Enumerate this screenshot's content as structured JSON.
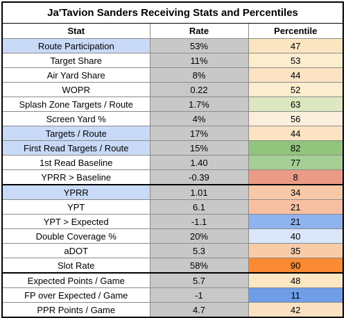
{
  "title": "Ja'Tavion Sanders Receiving Stats and Percentiles",
  "headers": {
    "stat": "Stat",
    "rate": "Rate",
    "percentile": "Percentile"
  },
  "rows": [
    {
      "stat": "Route Participation",
      "rate": "53%",
      "percentile": "47",
      "stat_bg": "#c9daf8",
      "pct_bg": "#fbe5c0"
    },
    {
      "stat": "Target Share",
      "rate": "11%",
      "percentile": "53",
      "stat_bg": "#ffffff",
      "pct_bg": "#faeecf"
    },
    {
      "stat": "Air Yard Share",
      "rate": "8%",
      "percentile": "44",
      "stat_bg": "#ffffff",
      "pct_bg": "#fbe3c3"
    },
    {
      "stat": "WOPR",
      "rate": "0.22",
      "percentile": "52",
      "stat_bg": "#ffffff",
      "pct_bg": "#faedd0"
    },
    {
      "stat": "Splash Zone Targets / Route",
      "rate": "1.7%",
      "percentile": "63",
      "stat_bg": "#ffffff",
      "pct_bg": "#dde8c0"
    },
    {
      "stat": "Screen Yard %",
      "rate": "4%",
      "percentile": "56",
      "stat_bg": "#ffffff",
      "pct_bg": "#fbeedd"
    },
    {
      "stat": "Targets / Route",
      "rate": "17%",
      "percentile": "44",
      "stat_bg": "#c9daf8",
      "pct_bg": "#fbe3c3"
    },
    {
      "stat": "First Read Targets / Route",
      "rate": "15%",
      "percentile": "82",
      "stat_bg": "#c9daf8",
      "pct_bg": "#93c47d"
    },
    {
      "stat": "1st Read Baseline",
      "rate": "1.40",
      "percentile": "77",
      "stat_bg": "#ffffff",
      "pct_bg": "#a6cf95"
    },
    {
      "stat": "YPRR > Baseline",
      "rate": "-0.39",
      "percentile": "8",
      "stat_bg": "#ffffff",
      "pct_bg": "#ea9a85"
    },
    {
      "stat": "YPRR",
      "rate": "1.01",
      "percentile": "34",
      "stat_bg": "#c9daf8",
      "pct_bg": "#f7c9a7"
    },
    {
      "stat": "YPT",
      "rate": "6.1",
      "percentile": "21",
      "stat_bg": "#ffffff",
      "pct_bg": "#f7c0a3"
    },
    {
      "stat": "YPT > Expected",
      "rate": "-1.1",
      "percentile": "21",
      "stat_bg": "#ffffff",
      "pct_bg": "#8fb3ed"
    },
    {
      "stat": "Double Coverage %",
      "rate": "20%",
      "percentile": "40",
      "stat_bg": "#ffffff",
      "pct_bg": "#dbe6f9"
    },
    {
      "stat": "aDOT",
      "rate": "5.3",
      "percentile": "35",
      "stat_bg": "#ffffff",
      "pct_bg": "#f8cba9"
    },
    {
      "stat": "Slot Rate",
      "rate": "58%",
      "percentile": "90",
      "stat_bg": "#ffffff",
      "pct_bg": "#fa8b34"
    },
    {
      "stat": "Expected Points / Game",
      "rate": "5.7",
      "percentile": "48",
      "stat_bg": "#ffffff",
      "pct_bg": "#fbe7c4"
    },
    {
      "stat": "FP over Expected / Game",
      "rate": "-1",
      "percentile": "11",
      "stat_bg": "#ffffff",
      "pct_bg": "#6f9de8"
    },
    {
      "stat": "PPR Points / Game",
      "rate": "4.7",
      "percentile": "42",
      "stat_bg": "#ffffff",
      "pct_bg": "#fbe1c2"
    }
  ],
  "rate_bg": "#c8c8c8"
}
